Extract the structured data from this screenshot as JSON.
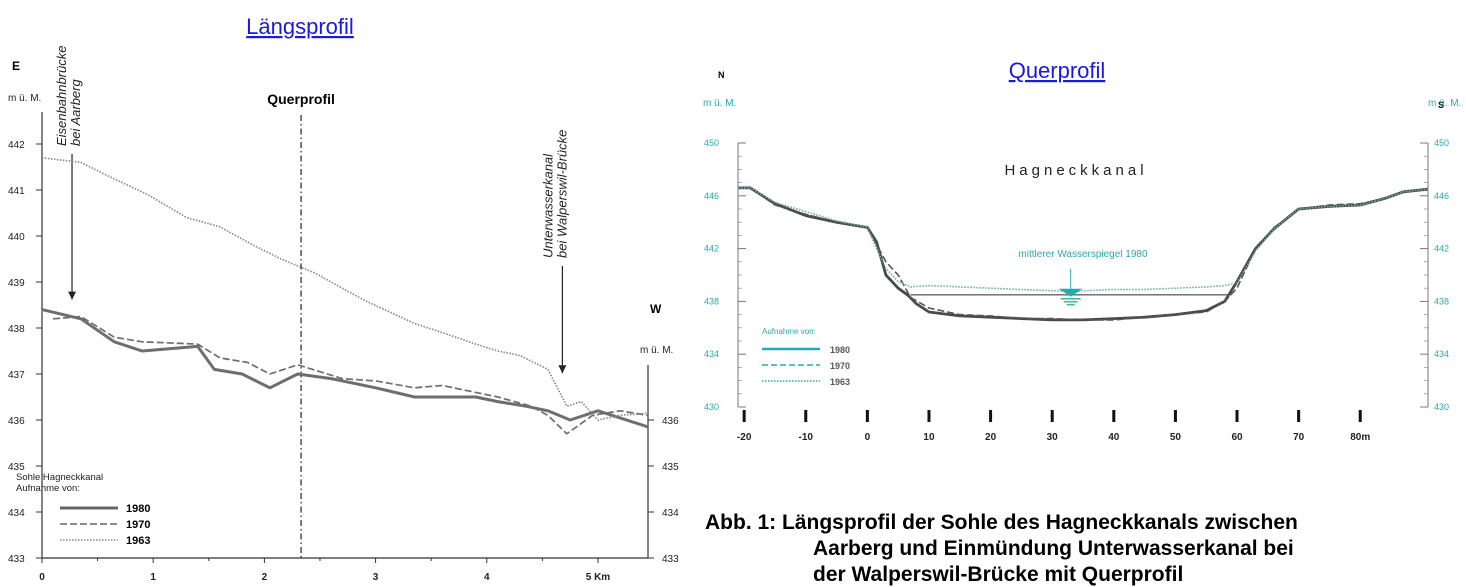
{
  "chart_data": [
    {
      "type": "line",
      "title": "Längsprofil",
      "left_axis_letter": "E",
      "right_axis_letter": "W",
      "ylabel": "m ü. M.",
      "ylabel_right": "m ü. M.",
      "xlim": [
        0,
        5.45
      ],
      "ylim": [
        433,
        442.4
      ],
      "x_ticks": [
        "0",
        "1",
        "2",
        "3",
        "4",
        "5 Km"
      ],
      "y_ticks": [
        433,
        434,
        435,
        436,
        437,
        438,
        439,
        440,
        441,
        442
      ],
      "y_ticks_right": [
        433,
        434,
        435,
        436
      ],
      "querprofil_marker": {
        "label": "Querprofil",
        "x": 2.33
      },
      "annotations": [
        {
          "text_line1": "Eisenbahnbrücke",
          "text_line2": "bei Aarberg",
          "x": 0.27,
          "arrow_to_y": 438.4
        },
        {
          "text_line1": "Unterwasserkanal",
          "text_line2": "bei Walperswil-Brücke",
          "x": 4.68,
          "arrow_to_y": 436.8
        }
      ],
      "legend": {
        "title_line1": "Sohle Hagneckkanal",
        "title_line2": "Aufnahme von:",
        "position": "bottom-left"
      },
      "series": [
        {
          "name": "1980",
          "style": "solid",
          "x": [
            0,
            0.35,
            0.65,
            0.9,
            1.4,
            1.55,
            1.8,
            2.05,
            2.3,
            2.6,
            3.0,
            3.35,
            3.6,
            3.9,
            4.1,
            4.35,
            4.55,
            4.75,
            5.0,
            5.45
          ],
          "y": [
            438.4,
            438.2,
            437.7,
            437.5,
            437.6,
            437.1,
            437.0,
            436.7,
            437.0,
            436.9,
            436.7,
            436.5,
            436.5,
            436.5,
            436.4,
            436.3,
            436.2,
            436.0,
            436.2,
            435.85
          ]
        },
        {
          "name": "1970",
          "style": "dashed",
          "x": [
            0.1,
            0.35,
            0.65,
            0.9,
            1.4,
            1.6,
            1.85,
            2.05,
            2.3,
            2.7,
            3.0,
            3.35,
            3.6,
            3.9,
            4.1,
            4.4,
            4.55,
            4.72,
            4.95,
            5.2,
            5.45
          ],
          "y": [
            438.2,
            438.25,
            437.8,
            437.7,
            437.65,
            437.35,
            437.25,
            437.0,
            437.2,
            436.9,
            436.85,
            436.7,
            436.75,
            436.6,
            436.5,
            436.3,
            436.1,
            435.7,
            436.1,
            436.2,
            436.1
          ]
        },
        {
          "name": "1963",
          "style": "dotted",
          "x": [
            0,
            0.35,
            0.6,
            0.95,
            1.3,
            1.6,
            1.9,
            2.15,
            2.45,
            2.9,
            3.35,
            3.6,
            3.9,
            4.1,
            4.3,
            4.55,
            4.72,
            4.85,
            5.0,
            5.2,
            5.45
          ],
          "y": [
            441.7,
            441.6,
            441.3,
            440.9,
            440.4,
            440.2,
            439.8,
            439.5,
            439.2,
            438.6,
            438.1,
            437.9,
            437.65,
            437.5,
            437.4,
            437.1,
            436.3,
            436.4,
            436.0,
            436.1,
            436.15
          ]
        }
      ]
    },
    {
      "type": "line",
      "title": "Querprofil",
      "left_axis_letter": "N",
      "right_axis_letter": "S",
      "ylabel": "m ü. M.",
      "ylabel_right": "m ü. M.",
      "xlim": [
        -21,
        91
      ],
      "ylim": [
        430,
        450
      ],
      "x_ticks": [
        "-20",
        "-10",
        "0",
        "10",
        "20",
        "30",
        "40",
        "50",
        "60",
        "70",
        "80m"
      ],
      "x_tick_values": [
        -20,
        -10,
        0,
        10,
        20,
        30,
        40,
        50,
        60,
        70,
        80
      ],
      "y_ticks": [
        430,
        434,
        438,
        442,
        446,
        450
      ],
      "label": "Hagneckkanal",
      "water_level": {
        "label": "mittlerer Wasserspiegel 1980",
        "y": 438.5,
        "x_from": 7,
        "x_to": 59
      },
      "legend": {
        "title": "Aufnahme von:",
        "position": "bottom-left"
      },
      "series": [
        {
          "name": "1980",
          "style": "solid",
          "x": [
            -21,
            -19,
            -15,
            -10,
            -5,
            0,
            1.5,
            3,
            5,
            6.5,
            8,
            10,
            15,
            20,
            25,
            30,
            35,
            40,
            45,
            50,
            55,
            58,
            60,
            63,
            66,
            70,
            75,
            80,
            84,
            87,
            91
          ],
          "y": [
            446.6,
            446.6,
            445.4,
            444.5,
            444.0,
            443.6,
            442.5,
            440.0,
            439.0,
            438.5,
            437.8,
            437.2,
            436.9,
            436.8,
            436.7,
            436.6,
            436.6,
            436.7,
            436.8,
            437.0,
            437.3,
            438.0,
            439.5,
            442.0,
            443.5,
            445.0,
            445.2,
            445.3,
            445.8,
            446.3,
            446.5
          ]
        },
        {
          "name": "1970",
          "style": "dashed",
          "x": [
            -21,
            -19,
            -15,
            -10,
            -5,
            0,
            1.5,
            3,
            5,
            7,
            10,
            15,
            20,
            25,
            30,
            35,
            40,
            45,
            50,
            55,
            58,
            60,
            63,
            66,
            70,
            75,
            80,
            84,
            87,
            91
          ],
          "y": [
            446.6,
            446.6,
            445.3,
            444.6,
            444.0,
            443.6,
            442.3,
            441.0,
            440.0,
            438.3,
            437.5,
            437.0,
            436.9,
            436.7,
            436.7,
            436.6,
            436.6,
            436.8,
            437.0,
            437.2,
            438.0,
            439.0,
            442.0,
            443.6,
            445.0,
            445.3,
            445.4,
            445.8,
            446.3,
            446.5
          ]
        },
        {
          "name": "1963",
          "style": "dotted",
          "x": [
            -21,
            -19,
            -15,
            -10,
            -5,
            0,
            1.5,
            3,
            5,
            7,
            10,
            15,
            20,
            25,
            30,
            35,
            40,
            45,
            50,
            55,
            58,
            60,
            63,
            66,
            70,
            75,
            80,
            84,
            87,
            91
          ],
          "y": [
            446.6,
            446.6,
            445.5,
            444.8,
            444.1,
            443.6,
            442.0,
            440.5,
            439.5,
            439.1,
            439.2,
            439.1,
            439.0,
            438.9,
            438.8,
            438.8,
            438.9,
            438.9,
            439.0,
            439.1,
            439.2,
            439.4,
            441.8,
            443.5,
            445.0,
            445.2,
            445.3,
            445.8,
            446.3,
            446.5
          ]
        }
      ]
    }
  ],
  "caption": {
    "line1": "Abb. 1:  Längsprofil der Sohle des Hagneckkanals zwischen",
    "line2": "Aarberg und Einmündung Unterwasserkanal bei",
    "line3": "der Walperswil-Brücke mit Querprofil"
  }
}
